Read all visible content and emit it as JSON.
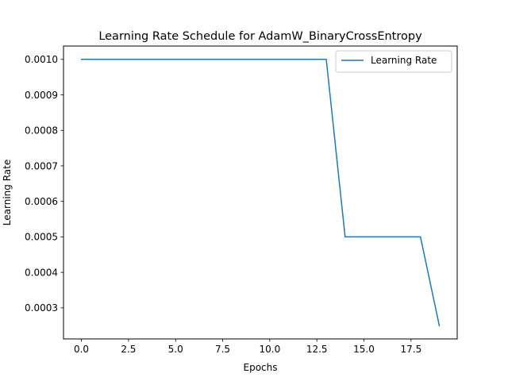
{
  "chart_data": {
    "type": "line",
    "title": "Learning Rate Schedule for AdamW_BinaryCrossEntropy",
    "xlabel": "Epochs",
    "ylabel": "Learning Rate",
    "xlim": [
      -0.95,
      19.95
    ],
    "ylim": [
      0.0002125,
      0.0010375
    ],
    "x_ticks": [
      0.0,
      2.5,
      5.0,
      7.5,
      10.0,
      12.5,
      15.0,
      17.5
    ],
    "x_tick_labels": [
      "0.0",
      "2.5",
      "5.0",
      "7.5",
      "10.0",
      "12.5",
      "15.0",
      "17.5"
    ],
    "y_ticks": [
      0.0003,
      0.0004,
      0.0005,
      0.0006,
      0.0007,
      0.0008,
      0.0009,
      0.001
    ],
    "y_tick_labels": [
      "0.0003",
      "0.0004",
      "0.0005",
      "0.0006",
      "0.0007",
      "0.0008",
      "0.0009",
      "0.0010"
    ],
    "grid": false,
    "legend_position": "top-right",
    "series": [
      {
        "name": "Learning Rate",
        "color": "#1f77b4",
        "x": [
          0,
          1,
          2,
          3,
          4,
          5,
          6,
          7,
          8,
          9,
          10,
          11,
          12,
          13,
          14,
          15,
          16,
          17,
          18,
          19
        ],
        "y": [
          0.001,
          0.001,
          0.001,
          0.001,
          0.001,
          0.001,
          0.001,
          0.001,
          0.001,
          0.001,
          0.001,
          0.001,
          0.001,
          0.001,
          0.0005,
          0.0005,
          0.0005,
          0.0005,
          0.0005,
          0.00025
        ]
      }
    ]
  }
}
